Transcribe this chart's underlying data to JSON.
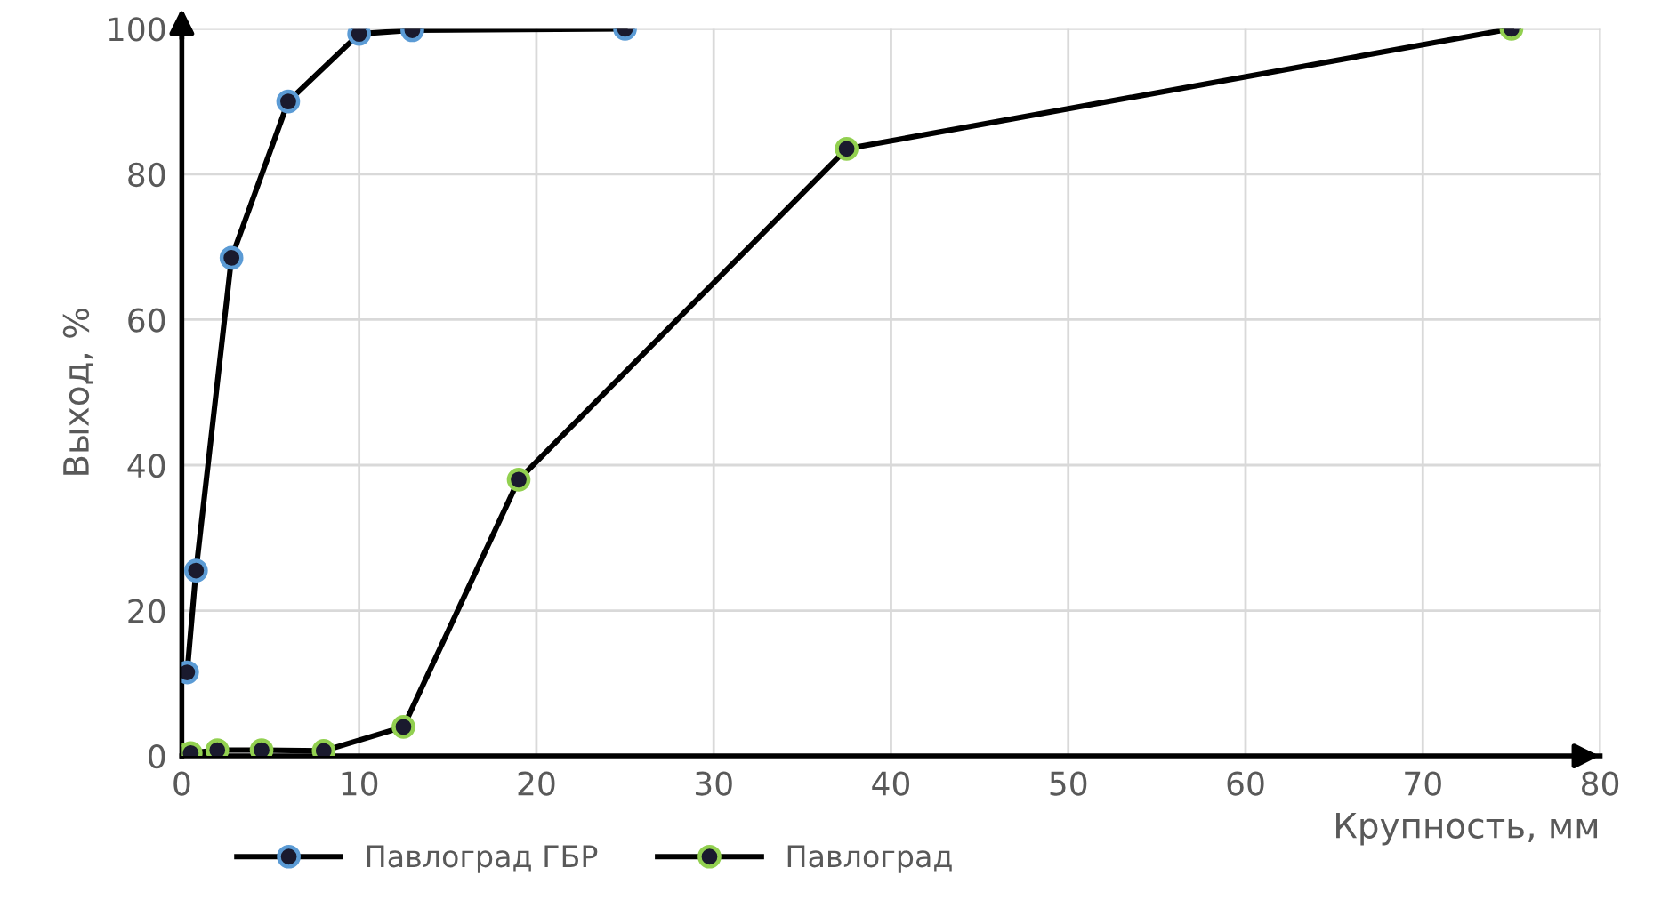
{
  "chart_data": {
    "type": "line",
    "xlabel": "Крупность, мм",
    "ylabel": "Выход, %",
    "series": [
      {
        "name": "Павлоград ГБР",
        "color": "#5b9bd5",
        "x": [
          0.3,
          0.8,
          2.8,
          6,
          10,
          13,
          25
        ],
        "values": [
          11.5,
          25.5,
          68.5,
          90,
          99.3,
          99.8,
          100
        ]
      },
      {
        "name": "Павлоград",
        "color": "#92d050",
        "x": [
          0,
          0.5,
          2,
          4.5,
          8,
          12.5,
          19,
          37.5,
          75
        ],
        "values": [
          0.2,
          0.4,
          0.8,
          0.8,
          0.7,
          4,
          38,
          83.5,
          100
        ]
      }
    ],
    "xlim": [
      0,
      80
    ],
    "xticks": [
      0,
      10,
      20,
      30,
      40,
      50,
      60,
      70,
      80
    ],
    "ylim": [
      0,
      100
    ],
    "yticks": [
      0,
      20,
      40,
      60,
      80,
      100
    ],
    "grid": true,
    "legend": "bottom",
    "marker": "circle",
    "line_style": "solid"
  }
}
